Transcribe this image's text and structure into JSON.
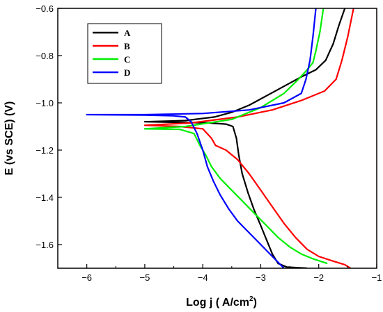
{
  "chart_data": {
    "type": "line",
    "xlabel": "Log j ( A/cm",
    "xlabel_sup": "2",
    "xlabel_end": ")",
    "ylabel": "E (vs SCE) (V)",
    "xlim": [
      -6.5,
      -1.0
    ],
    "ylim": [
      -1.7,
      -0.6
    ],
    "x_ticks": [
      -6,
      -5,
      -4,
      -3,
      -2,
      -1
    ],
    "y_ticks": [
      -1.6,
      -1.4,
      -1.2,
      -1.0,
      -0.8,
      -0.6
    ],
    "x_tick_labels": [
      "−6",
      "−5",
      "−4",
      "−3",
      "−2",
      "−1"
    ],
    "y_tick_labels": [
      "−1.6",
      "−1.4",
      "−1.2",
      "−1.0",
      "−0.8",
      "−0.6"
    ],
    "grid": false,
    "legend_position": "top-left",
    "series": [
      {
        "name": "A",
        "color": "#000000",
        "points": [
          [
            -1.55,
            -0.6
          ],
          [
            -1.65,
            -0.67
          ],
          [
            -1.75,
            -0.75
          ],
          [
            -1.88,
            -0.82
          ],
          [
            -2.05,
            -0.86
          ],
          [
            -2.3,
            -0.89
          ],
          [
            -2.6,
            -0.93
          ],
          [
            -2.9,
            -0.97
          ],
          [
            -3.2,
            -1.01
          ],
          [
            -3.5,
            -1.04
          ],
          [
            -3.8,
            -1.06
          ],
          [
            -4.3,
            -1.075
          ],
          [
            -5.0,
            -1.08
          ],
          [
            -3.9,
            -1.085
          ],
          [
            -3.6,
            -1.09
          ],
          [
            -3.48,
            -1.1
          ],
          [
            -3.42,
            -1.15
          ],
          [
            -3.38,
            -1.22
          ],
          [
            -3.32,
            -1.3
          ],
          [
            -3.22,
            -1.38
          ],
          [
            -3.12,
            -1.45
          ],
          [
            -3.0,
            -1.52
          ],
          [
            -2.9,
            -1.58
          ],
          [
            -2.8,
            -1.64
          ],
          [
            -2.7,
            -1.68
          ],
          [
            -2.55,
            -1.695
          ],
          [
            -2.2,
            -1.7
          ]
        ]
      },
      {
        "name": "B",
        "color": "#ff0000",
        "points": [
          [
            -1.4,
            -0.6
          ],
          [
            -1.5,
            -0.72
          ],
          [
            -1.6,
            -0.82
          ],
          [
            -1.7,
            -0.9
          ],
          [
            -1.9,
            -0.95
          ],
          [
            -2.3,
            -0.99
          ],
          [
            -2.8,
            -1.03
          ],
          [
            -3.4,
            -1.06
          ],
          [
            -4.2,
            -1.085
          ],
          [
            -5.0,
            -1.095
          ],
          [
            -4.4,
            -1.1
          ],
          [
            -4.0,
            -1.11
          ],
          [
            -3.85,
            -1.15
          ],
          [
            -3.78,
            -1.18
          ],
          [
            -3.6,
            -1.2
          ],
          [
            -3.4,
            -1.24
          ],
          [
            -3.2,
            -1.3
          ],
          [
            -3.0,
            -1.37
          ],
          [
            -2.8,
            -1.44
          ],
          [
            -2.6,
            -1.51
          ],
          [
            -2.4,
            -1.57
          ],
          [
            -2.2,
            -1.62
          ],
          [
            -2.0,
            -1.65
          ],
          [
            -1.75,
            -1.67
          ],
          [
            -1.55,
            -1.685
          ],
          [
            -1.45,
            -1.7
          ]
        ]
      },
      {
        "name": "C",
        "color": "#00ee00",
        "points": [
          [
            -1.92,
            -0.6
          ],
          [
            -1.98,
            -0.7
          ],
          [
            -2.05,
            -0.78
          ],
          [
            -2.1,
            -0.83
          ],
          [
            -2.2,
            -0.86
          ],
          [
            -2.35,
            -0.9
          ],
          [
            -2.6,
            -0.96
          ],
          [
            -3.0,
            -1.02
          ],
          [
            -3.5,
            -1.07
          ],
          [
            -4.3,
            -1.1
          ],
          [
            -5.0,
            -1.11
          ],
          [
            -4.4,
            -1.112
          ],
          [
            -4.15,
            -1.13
          ],
          [
            -4.05,
            -1.18
          ],
          [
            -3.95,
            -1.22
          ],
          [
            -3.85,
            -1.27
          ],
          [
            -3.7,
            -1.32
          ],
          [
            -3.5,
            -1.37
          ],
          [
            -3.3,
            -1.42
          ],
          [
            -3.1,
            -1.47
          ],
          [
            -2.9,
            -1.52
          ],
          [
            -2.7,
            -1.57
          ],
          [
            -2.5,
            -1.61
          ],
          [
            -2.3,
            -1.64
          ],
          [
            -2.1,
            -1.66
          ],
          [
            -1.85,
            -1.68
          ]
        ]
      },
      {
        "name": "D",
        "color": "#0000ff",
        "points": [
          [
            -2.05,
            -0.6
          ],
          [
            -2.1,
            -0.72
          ],
          [
            -2.15,
            -0.82
          ],
          [
            -2.22,
            -0.9
          ],
          [
            -2.3,
            -0.96
          ],
          [
            -2.6,
            -1.0
          ],
          [
            -3.2,
            -1.03
          ],
          [
            -4.0,
            -1.045
          ],
          [
            -5.0,
            -1.05
          ],
          [
            -6.0,
            -1.05
          ],
          [
            -5.0,
            -1.052
          ],
          [
            -4.5,
            -1.055
          ],
          [
            -4.3,
            -1.06
          ],
          [
            -4.2,
            -1.08
          ],
          [
            -4.1,
            -1.13
          ],
          [
            -4.0,
            -1.2
          ],
          [
            -3.92,
            -1.27
          ],
          [
            -3.82,
            -1.33
          ],
          [
            -3.7,
            -1.39
          ],
          [
            -3.55,
            -1.45
          ],
          [
            -3.4,
            -1.5
          ],
          [
            -3.2,
            -1.55
          ],
          [
            -3.0,
            -1.6
          ],
          [
            -2.8,
            -1.65
          ],
          [
            -2.6,
            -1.7
          ]
        ]
      }
    ]
  }
}
